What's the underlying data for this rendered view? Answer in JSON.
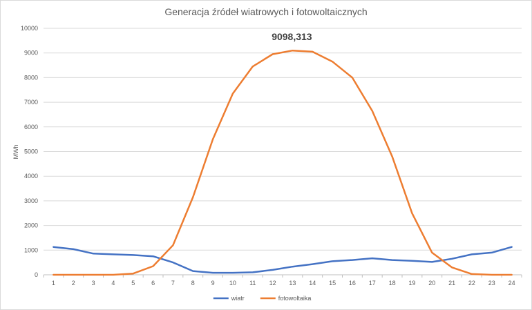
{
  "chart_data": {
    "type": "line",
    "title": "Generacja źródeł wiatrowych i fotowoltaicznych",
    "xlabel": "",
    "ylabel": "MWh",
    "ylim": [
      0,
      10000
    ],
    "yticks": [
      "0",
      "1000",
      "2000",
      "3000",
      "4000",
      "5000",
      "6000",
      "7000",
      "8000",
      "9000",
      "10000"
    ],
    "categories": [
      "1",
      "2",
      "3",
      "4",
      "5",
      "6",
      "7",
      "8",
      "9",
      "10",
      "11",
      "12",
      "13",
      "14",
      "15",
      "16",
      "17",
      "18",
      "19",
      "20",
      "21",
      "22",
      "23",
      "24"
    ],
    "grid": true,
    "legend_position": "bottom",
    "series": [
      {
        "name": "wiatr",
        "color": "#4472c4",
        "values": [
          1130,
          1040,
          860,
          830,
          800,
          750,
          500,
          150,
          80,
          80,
          100,
          200,
          330,
          430,
          550,
          600,
          670,
          600,
          570,
          520,
          650,
          830,
          900,
          1130
        ]
      },
      {
        "name": "fotowoltaika",
        "color": "#ed7d31",
        "values": [
          0,
          0,
          0,
          0,
          50,
          350,
          1200,
          3150,
          5500,
          7350,
          8450,
          8950,
          9098,
          9050,
          8650,
          8000,
          6650,
          4800,
          2500,
          900,
          300,
          30,
          0,
          0
        ]
      }
    ],
    "annotations": [
      {
        "text": "9098,313",
        "category": "13",
        "series": "fotowoltaika"
      }
    ]
  }
}
